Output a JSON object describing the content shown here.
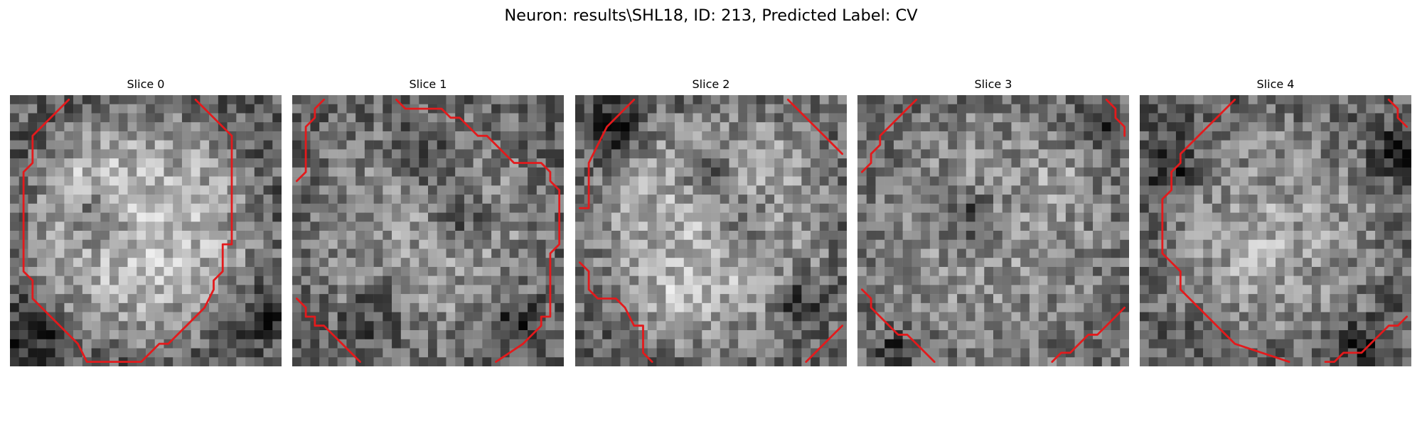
{
  "figure": {
    "title": "Neuron: results\\SHL18, ID: 213, Predicted Label: CV",
    "grid_size": 30,
    "contour_color": "#e31a1c",
    "colormap": "gray",
    "slices": [
      {
        "title": "Slice 0",
        "seed": 11,
        "bright": 0.74,
        "dim": 0.38,
        "dark_spots": [
          [
            9,
            13,
            2.0
          ],
          [
            2,
            26,
            2.2
          ],
          [
            28,
            24,
            2.0
          ]
        ],
        "bright_spots": [
          [
            8,
            8,
            3.0
          ]
        ],
        "contours": [
          [
            [
              6,
              0
            ],
            [
              2,
              4
            ],
            [
              2,
              7
            ],
            [
              1,
              8
            ],
            [
              1,
              19
            ],
            [
              2,
              20
            ],
            [
              2,
              22
            ],
            [
              4,
              24
            ],
            [
              7,
              27
            ],
            [
              8,
              29
            ],
            [
              14,
              29
            ],
            [
              16,
              27
            ],
            [
              17,
              27
            ],
            [
              21,
              23
            ],
            [
              22,
              21
            ],
            [
              22,
              20
            ],
            [
              23,
              19
            ],
            [
              23,
              16
            ],
            [
              24,
              16
            ],
            [
              24,
              15
            ],
            [
              24,
              4
            ],
            [
              23,
              3
            ],
            [
              20,
              0
            ]
          ]
        ]
      },
      {
        "title": "Slice 1",
        "seed": 23,
        "bright": 0.6,
        "dim": 0.4,
        "dark_spots": [
          [
            14,
            6,
            2.5
          ],
          [
            18,
            13,
            2.0
          ],
          [
            8,
            23,
            2.5
          ],
          [
            24,
            25,
            2.0
          ]
        ],
        "bright_spots": [
          [
            6,
            22,
            2.0
          ]
        ],
        "contours": [
          [
            [
              11,
              0
            ],
            [
              12,
              1
            ],
            [
              16,
              1
            ],
            [
              17,
              2
            ],
            [
              18,
              2
            ],
            [
              19,
              3
            ],
            [
              20,
              4
            ],
            [
              21,
              4
            ],
            [
              22,
              5
            ],
            [
              23,
              6
            ],
            [
              24,
              7
            ],
            [
              24,
              7
            ],
            [
              25,
              7
            ],
            [
              27,
              7
            ],
            [
              28,
              8
            ],
            [
              28,
              9
            ],
            [
              29,
              10
            ],
            [
              29,
              16
            ],
            [
              28,
              17
            ],
            [
              28,
              24
            ],
            [
              27,
              24
            ],
            [
              27,
              25
            ],
            [
              26,
              26
            ],
            [
              25,
              27
            ],
            [
              22,
              29
            ]
          ],
          [
            [
              3,
              0
            ],
            [
              2,
              1
            ],
            [
              2,
              2
            ],
            [
              1,
              3
            ],
            [
              1,
              8
            ],
            [
              0,
              9
            ]
          ],
          [
            [
              0,
              22
            ],
            [
              1,
              23
            ],
            [
              1,
              24
            ],
            [
              2,
              24
            ],
            [
              2,
              25
            ],
            [
              3,
              25
            ],
            [
              4,
              26
            ],
            [
              5,
              27
            ],
            [
              6,
              28
            ],
            [
              7,
              29
            ]
          ]
        ]
      },
      {
        "title": "Slice 2",
        "seed": 37,
        "bright": 0.72,
        "dim": 0.4,
        "dark_spots": [
          [
            18,
            13,
            2.5
          ],
          [
            14,
            8,
            2.0
          ],
          [
            24,
            22,
            2.0
          ],
          [
            4,
            3,
            2.0
          ]
        ],
        "bright_spots": [
          [
            22,
            6,
            3.0
          ],
          [
            10,
            23,
            2.5
          ]
        ],
        "contours": [
          [
            [
              6,
              0
            ],
            [
              5,
              1
            ],
            [
              4,
              2
            ],
            [
              3,
              3
            ],
            [
              2,
              5
            ],
            [
              1,
              7
            ],
            [
              1,
              8
            ],
            [
              1,
              12
            ],
            [
              0,
              12
            ]
          ],
          [
            [
              23,
              0
            ],
            [
              24,
              1
            ],
            [
              25,
              2
            ],
            [
              26,
              3
            ],
            [
              27,
              4
            ],
            [
              29,
              6
            ]
          ],
          [
            [
              0,
              18
            ],
            [
              1,
              19
            ],
            [
              1,
              21
            ],
            [
              2,
              22
            ],
            [
              4,
              22
            ],
            [
              5,
              23
            ],
            [
              6,
              25
            ],
            [
              7,
              25
            ],
            [
              7,
              28
            ],
            [
              8,
              29
            ]
          ],
          [
            [
              29,
              25
            ],
            [
              28,
              26
            ],
            [
              27,
              27
            ],
            [
              26,
              28
            ],
            [
              25,
              29
            ]
          ]
        ]
      },
      {
        "title": "Slice 3",
        "seed": 53,
        "bright": 0.58,
        "dim": 0.44,
        "dark_spots": [
          [
            12,
            13,
            2.0
          ],
          [
            26,
            3,
            1.5
          ],
          [
            4,
            28,
            1.5
          ]
        ],
        "bright_spots": [
          [
            22,
            9,
            2.0
          ]
        ],
        "contours": [
          [
            [
              6,
              0
            ],
            [
              5,
              1
            ],
            [
              4,
              2
            ],
            [
              3,
              3
            ],
            [
              2,
              4
            ],
            [
              2,
              5
            ],
            [
              1,
              6
            ],
            [
              1,
              7
            ],
            [
              0,
              8
            ]
          ],
          [
            [
              27,
              0
            ],
            [
              28,
              1
            ],
            [
              28,
              2
            ],
            [
              29,
              3
            ],
            [
              29,
              4
            ]
          ],
          [
            [
              0,
              21
            ],
            [
              1,
              22
            ],
            [
              1,
              23
            ],
            [
              2,
              24
            ],
            [
              3,
              25
            ],
            [
              4,
              26
            ],
            [
              5,
              26
            ],
            [
              6,
              27
            ],
            [
              7,
              28
            ],
            [
              8,
              29
            ]
          ],
          [
            [
              29,
              23
            ],
            [
              28,
              24
            ],
            [
              27,
              25
            ],
            [
              26,
              26
            ],
            [
              25,
              26
            ],
            [
              24,
              27
            ],
            [
              23,
              28
            ],
            [
              22,
              28
            ],
            [
              21,
              29
            ]
          ]
        ]
      },
      {
        "title": "Slice 4",
        "seed": 71,
        "bright": 0.6,
        "dim": 0.38,
        "dark_spots": [
          [
            3,
            8,
            2.0
          ],
          [
            28,
            6,
            2.0
          ],
          [
            24,
            27,
            1.5
          ]
        ],
        "bright_spots": [
          [
            12,
            17,
            3.0
          ]
        ],
        "contours": [
          [
            [
              10,
              0
            ],
            [
              9,
              1
            ],
            [
              8,
              2
            ],
            [
              7,
              3
            ],
            [
              6,
              4
            ],
            [
              5,
              5
            ],
            [
              4,
              6
            ],
            [
              4,
              7
            ],
            [
              3,
              8
            ],
            [
              3,
              10
            ],
            [
              2,
              11
            ],
            [
              2,
              17
            ],
            [
              3,
              18
            ],
            [
              4,
              19
            ],
            [
              4,
              21
            ],
            [
              5,
              22
            ],
            [
              6,
              23
            ],
            [
              7,
              24
            ],
            [
              8,
              25
            ],
            [
              10,
              27
            ],
            [
              13,
              28
            ],
            [
              16,
              29
            ]
          ],
          [
            [
              27,
              0
            ],
            [
              28,
              1
            ],
            [
              28,
              2
            ],
            [
              29,
              3
            ]
          ],
          [
            [
              20,
              29
            ],
            [
              21,
              29
            ],
            [
              22,
              28
            ],
            [
              23,
              28
            ],
            [
              24,
              28
            ],
            [
              25,
              27
            ],
            [
              26,
              26
            ],
            [
              27,
              25
            ],
            [
              28,
              25
            ],
            [
              29,
              24
            ]
          ]
        ]
      }
    ]
  }
}
